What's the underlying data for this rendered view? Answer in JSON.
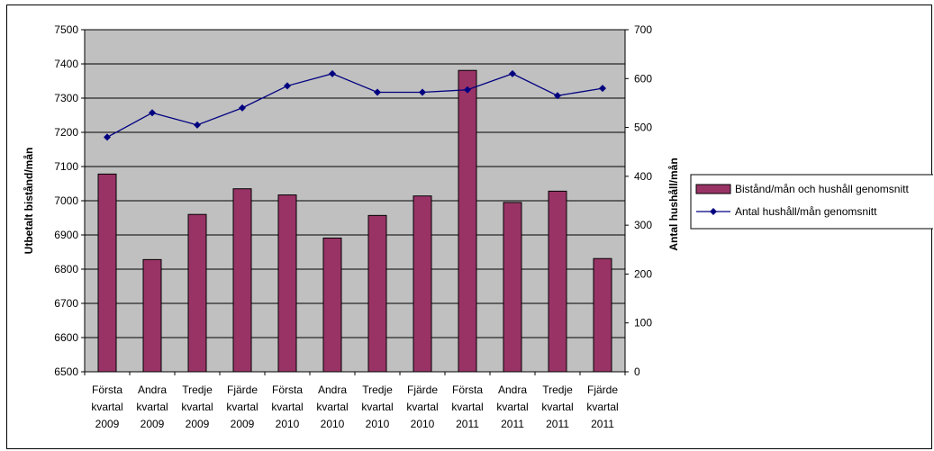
{
  "chart_data": {
    "type": "bar",
    "categories": [
      [
        "Första",
        "kvartal",
        "2009"
      ],
      [
        "Andra",
        "kvartal",
        "2009"
      ],
      [
        "Tredje",
        "kvartal",
        "2009"
      ],
      [
        "Fjärde",
        "kvartal",
        "2009"
      ],
      [
        "Första",
        "kvartal",
        "2010"
      ],
      [
        "Andra",
        "kvartal",
        "2010"
      ],
      [
        "Tredje",
        "kvartal",
        "2010"
      ],
      [
        "Fjärde",
        "kvartal",
        "2010"
      ],
      [
        "Första",
        "kvartal",
        "2011"
      ],
      [
        "Andra",
        "kvartal",
        "2011"
      ],
      [
        "Tredje",
        "kvartal",
        "2011"
      ],
      [
        "Fjärde",
        "kvartal",
        "2011"
      ]
    ],
    "series": [
      {
        "name": "Bistånd/mån och hushåll genomsnitt",
        "type": "bar",
        "axis": "left",
        "color": "#993366",
        "values": [
          7078,
          6828,
          6960,
          7035,
          7017,
          6891,
          6957,
          7014,
          7381,
          6995,
          7028,
          6831
        ]
      },
      {
        "name": "Antal hushåll/mån genomsnitt",
        "type": "line",
        "axis": "right",
        "color": "#000080",
        "marker": "diamond",
        "values": [
          480,
          530,
          505,
          540,
          585,
          610,
          572,
          572,
          577,
          610,
          565,
          580
        ]
      }
    ],
    "ylabel": "Utbetalt bistånd/mån",
    "y2label": "Antal hushåll/mån",
    "ylim": [
      6500,
      7500
    ],
    "y_ticks": [
      6500,
      6600,
      6700,
      6800,
      6900,
      7000,
      7100,
      7200,
      7300,
      7400,
      7500
    ],
    "y2lim": [
      0,
      700
    ],
    "y2_ticks": [
      0,
      100,
      200,
      300,
      400,
      500,
      600,
      700
    ],
    "plot_background": "#c0c0c0",
    "grid": true,
    "legend_position": "right"
  }
}
